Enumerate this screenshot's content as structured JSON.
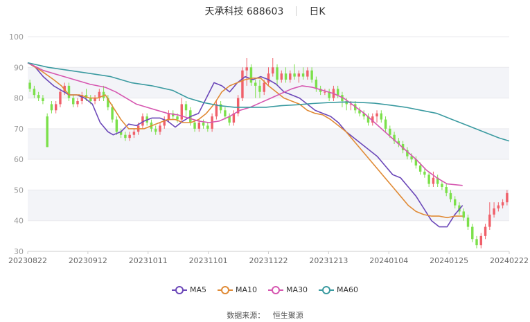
{
  "header": {
    "title": "天承科技 688603",
    "period": "日K"
  },
  "source": {
    "label": "数据来源：",
    "value": "恒生聚源"
  },
  "colors": {
    "up": "#f0606a",
    "down": "#7be04a",
    "grid": "#e9e9ee",
    "band": "#f3f4f8",
    "axis": "#999999"
  },
  "chart_data": {
    "type": "candlestick",
    "ylim": [
      30,
      100
    ],
    "yticks": [
      30,
      40,
      50,
      60,
      70,
      80,
      90,
      100
    ],
    "grid": true,
    "legend_position": "bottom",
    "x_tick_labels": [
      "20230822",
      "20230912",
      "20231011",
      "20231101",
      "20231122",
      "20231213",
      "20240104",
      "20240125",
      "20240222"
    ],
    "candles": [
      [
        85,
        83,
        86,
        82
      ],
      [
        83,
        81,
        84,
        80
      ],
      [
        81,
        80,
        82,
        79
      ],
      [
        80,
        79,
        81,
        78
      ],
      [
        74,
        64,
        75,
        64
      ],
      [
        78,
        76,
        79,
        75
      ],
      [
        76,
        78,
        79,
        75
      ],
      [
        78,
        82,
        83,
        77
      ],
      [
        82,
        84,
        85,
        81
      ],
      [
        84,
        80,
        85,
        79
      ],
      [
        80,
        78,
        81,
        77
      ],
      [
        78,
        79,
        80,
        77
      ],
      [
        79,
        81,
        82,
        78
      ],
      [
        81,
        80,
        83,
        79
      ],
      [
        80,
        79,
        81,
        78
      ],
      [
        79,
        80,
        81,
        78
      ],
      [
        80,
        82,
        83,
        79
      ],
      [
        82,
        80,
        84,
        79
      ],
      [
        80,
        77,
        81,
        76
      ],
      [
        77,
        73,
        78,
        72
      ],
      [
        73,
        69,
        74,
        68
      ],
      [
        69,
        68,
        70,
        67
      ],
      [
        68,
        67,
        69,
        66
      ],
      [
        67,
        68,
        69,
        66
      ],
      [
        68,
        69,
        70,
        67
      ],
      [
        69,
        71,
        72,
        68
      ],
      [
        71,
        74,
        75,
        70
      ],
      [
        74,
        72,
        75,
        71
      ],
      [
        72,
        70,
        73,
        69
      ],
      [
        70,
        69,
        71,
        68
      ],
      [
        69,
        71,
        72,
        68
      ],
      [
        71,
        73,
        74,
        70
      ],
      [
        73,
        75,
        76,
        72
      ],
      [
        75,
        74,
        76,
        73
      ],
      [
        74,
        73,
        75,
        72
      ],
      [
        73,
        78,
        80,
        72
      ],
      [
        78,
        76,
        79,
        74
      ],
      [
        76,
        72,
        77,
        71
      ],
      [
        72,
        70,
        73,
        69
      ],
      [
        70,
        72,
        73,
        69
      ],
      [
        72,
        71,
        73,
        70
      ],
      [
        71,
        70,
        72,
        69
      ],
      [
        70,
        74,
        75,
        69
      ],
      [
        74,
        78,
        79,
        73
      ],
      [
        78,
        76,
        79,
        75
      ],
      [
        76,
        74,
        77,
        73
      ],
      [
        74,
        72,
        75,
        71
      ],
      [
        72,
        75,
        76,
        71
      ],
      [
        75,
        80,
        81,
        74
      ],
      [
        80,
        89,
        90,
        79
      ],
      [
        89,
        90,
        93,
        84
      ],
      [
        90,
        85,
        91,
        84
      ],
      [
        85,
        84,
        86,
        80
      ],
      [
        84,
        82,
        86,
        80
      ],
      [
        82,
        85,
        86,
        81
      ],
      [
        85,
        88,
        90,
        84
      ],
      [
        88,
        90,
        93,
        87
      ],
      [
        90,
        86,
        91,
        84
      ],
      [
        86,
        88,
        89,
        85
      ],
      [
        88,
        86,
        90,
        85
      ],
      [
        86,
        88,
        89,
        85
      ],
      [
        88,
        87,
        91,
        86
      ],
      [
        87,
        88,
        89,
        85
      ],
      [
        88,
        87,
        90,
        86
      ],
      [
        87,
        89,
        90,
        86
      ],
      [
        89,
        86,
        90,
        85
      ],
      [
        86,
        83,
        87,
        82
      ],
      [
        83,
        82,
        84,
        81
      ],
      [
        82,
        82,
        83,
        81
      ],
      [
        82,
        80,
        83,
        79
      ],
      [
        80,
        83,
        84,
        79
      ],
      [
        83,
        81,
        84,
        80
      ],
      [
        81,
        79,
        82,
        77
      ],
      [
        79,
        78,
        80,
        76
      ],
      [
        78,
        78,
        79,
        76
      ],
      [
        78,
        76,
        79,
        75
      ],
      [
        76,
        75,
        77,
        74
      ],
      [
        75,
        74,
        76,
        73
      ],
      [
        74,
        72,
        75,
        71
      ],
      [
        72,
        74,
        75,
        71
      ],
      [
        74,
        75,
        76,
        72
      ],
      [
        75,
        73,
        76,
        72
      ],
      [
        73,
        70,
        74,
        69
      ],
      [
        70,
        68,
        71,
        67
      ],
      [
        68,
        66,
        69,
        65
      ],
      [
        66,
        65,
        67,
        64
      ],
      [
        65,
        63,
        66,
        62
      ],
      [
        63,
        61,
        64,
        60
      ],
      [
        61,
        60,
        62,
        59
      ],
      [
        60,
        58,
        61,
        57
      ],
      [
        58,
        56,
        59,
        55
      ],
      [
        56,
        55,
        57,
        54
      ],
      [
        55,
        52,
        56,
        51
      ],
      [
        52,
        54,
        56,
        51
      ],
      [
        54,
        52,
        55,
        51
      ],
      [
        52,
        51,
        53,
        50
      ],
      [
        51,
        49,
        52,
        48
      ],
      [
        49,
        47,
        50,
        46
      ],
      [
        47,
        45,
        48,
        44
      ],
      [
        45,
        43,
        46,
        42
      ],
      [
        43,
        41,
        44,
        40
      ],
      [
        41,
        38,
        42,
        37
      ],
      [
        38,
        34,
        39,
        33
      ],
      [
        34,
        32,
        35,
        31
      ],
      [
        32,
        35,
        36,
        31
      ],
      [
        35,
        38,
        39,
        34
      ],
      [
        38,
        42,
        46,
        37
      ],
      [
        42,
        44,
        46,
        41
      ],
      [
        44,
        45,
        46,
        43
      ],
      [
        45,
        46,
        47,
        44
      ],
      [
        46,
        49,
        50,
        45
      ]
    ],
    "series": [
      {
        "name": "MA5",
        "color": "#6b47b8",
        "values": [
          [
            0,
            91.5
          ],
          [
            3,
            90
          ],
          [
            6,
            87
          ],
          [
            10,
            84
          ],
          [
            12,
            83
          ],
          [
            14,
            82
          ],
          [
            16,
            81
          ],
          [
            19,
            81
          ],
          [
            22,
            80
          ],
          [
            25,
            78
          ],
          [
            28,
            72
          ],
          [
            31,
            69
          ],
          [
            33,
            68
          ],
          [
            36,
            69
          ],
          [
            39,
            71.5
          ],
          [
            42,
            71
          ],
          [
            45,
            72.5
          ],
          [
            48,
            73.5
          ],
          [
            51,
            73.5
          ],
          [
            54,
            72.5
          ],
          [
            57,
            70.5
          ],
          [
            60,
            72.5
          ],
          [
            63,
            74
          ],
          [
            66,
            75
          ],
          [
            69,
            80
          ],
          [
            72,
            85
          ],
          [
            75,
            84
          ],
          [
            78,
            82
          ],
          [
            81,
            85
          ],
          [
            84,
            87
          ],
          [
            87,
            86
          ],
          [
            90,
            87
          ],
          [
            93,
            86
          ],
          [
            96,
            84.5
          ],
          [
            99,
            82
          ],
          [
            102,
            81
          ],
          [
            105,
            80
          ],
          [
            108,
            78
          ],
          [
            111,
            76
          ],
          [
            114,
            75
          ],
          [
            117,
            74
          ],
          [
            120,
            72
          ],
          [
            123,
            69
          ],
          [
            126,
            67
          ],
          [
            129,
            65
          ],
          [
            132,
            63
          ],
          [
            135,
            61
          ],
          [
            138,
            58
          ],
          [
            141,
            55
          ],
          [
            144,
            54
          ],
          [
            147,
            51
          ],
          [
            150,
            48
          ],
          [
            153,
            44
          ],
          [
            156,
            40
          ],
          [
            159,
            38
          ],
          [
            162,
            38
          ],
          [
            165,
            42
          ],
          [
            168,
            45
          ]
        ]
      },
      {
        "name": "MA10",
        "color": "#e08a35",
        "values": [
          [
            0,
            91.5
          ],
          [
            5,
            89
          ],
          [
            10,
            86
          ],
          [
            13,
            84
          ],
          [
            16,
            81
          ],
          [
            20,
            81
          ],
          [
            24,
            80
          ],
          [
            27,
            80
          ],
          [
            30,
            81
          ],
          [
            33,
            77
          ],
          [
            36,
            73
          ],
          [
            39,
            70
          ],
          [
            42,
            70
          ],
          [
            45,
            70
          ],
          [
            48,
            71
          ],
          [
            51,
            72
          ],
          [
            54,
            73
          ],
          [
            57,
            73
          ],
          [
            60,
            72
          ],
          [
            63,
            72
          ],
          [
            66,
            73
          ],
          [
            69,
            75
          ],
          [
            72,
            78
          ],
          [
            75,
            82
          ],
          [
            78,
            84
          ],
          [
            81,
            85
          ],
          [
            84,
            86
          ],
          [
            87,
            86.5
          ],
          [
            90,
            86.5
          ],
          [
            93,
            84
          ],
          [
            96,
            82
          ],
          [
            99,
            80
          ],
          [
            102,
            79
          ],
          [
            105,
            78
          ],
          [
            108,
            76
          ],
          [
            111,
            75
          ],
          [
            114,
            74.5
          ],
          [
            117,
            73
          ],
          [
            120,
            71
          ],
          [
            123,
            69
          ],
          [
            126,
            66
          ],
          [
            129,
            63
          ],
          [
            132,
            60
          ],
          [
            135,
            57
          ],
          [
            138,
            54
          ],
          [
            141,
            51
          ],
          [
            144,
            48
          ],
          [
            147,
            45
          ],
          [
            150,
            43
          ],
          [
            153,
            42
          ],
          [
            156,
            41.5
          ],
          [
            159,
            41.5
          ],
          [
            162,
            41
          ],
          [
            165,
            41.5
          ],
          [
            168,
            41.5
          ]
        ]
      },
      {
        "name": "MA30",
        "color": "#d656b0",
        "values": [
          [
            0,
            91.5
          ],
          [
            6,
            89
          ],
          [
            12,
            87.5
          ],
          [
            18,
            86
          ],
          [
            24,
            84.5
          ],
          [
            30,
            83.5
          ],
          [
            34,
            82
          ],
          [
            38,
            80
          ],
          [
            42,
            78
          ],
          [
            46,
            77
          ],
          [
            50,
            76
          ],
          [
            54,
            75
          ],
          [
            58,
            74.5
          ],
          [
            62,
            73.5
          ],
          [
            66,
            72.5
          ],
          [
            70,
            72
          ],
          [
            74,
            72.5
          ],
          [
            78,
            74
          ],
          [
            82,
            76
          ],
          [
            86,
            77
          ],
          [
            90,
            78.5
          ],
          [
            94,
            80
          ],
          [
            98,
            81.5
          ],
          [
            102,
            83
          ],
          [
            106,
            84
          ],
          [
            110,
            83.5
          ],
          [
            114,
            82.5
          ],
          [
            118,
            81.5
          ],
          [
            122,
            80
          ],
          [
            126,
            77.5
          ],
          [
            130,
            75
          ],
          [
            134,
            72
          ],
          [
            138,
            69
          ],
          [
            142,
            66
          ],
          [
            146,
            63
          ],
          [
            150,
            60
          ],
          [
            154,
            56.5
          ],
          [
            158,
            54
          ],
          [
            162,
            52
          ],
          [
            168,
            51.5
          ]
        ]
      },
      {
        "name": "MA60",
        "color": "#3a9aa0",
        "values": [
          [
            0,
            91.5
          ],
          [
            8,
            90
          ],
          [
            16,
            89
          ],
          [
            24,
            88
          ],
          [
            32,
            87
          ],
          [
            40,
            85
          ],
          [
            48,
            84
          ],
          [
            56,
            82.5
          ],
          [
            62,
            80
          ],
          [
            68,
            78.5
          ],
          [
            74,
            77.5
          ],
          [
            80,
            77
          ],
          [
            86,
            77
          ],
          [
            92,
            77
          ],
          [
            98,
            77.5
          ],
          [
            104,
            77.8
          ],
          [
            110,
            78.2
          ],
          [
            116,
            78.5
          ],
          [
            122,
            78.7
          ],
          [
            128,
            78.6
          ],
          [
            134,
            78.3
          ],
          [
            140,
            77.7
          ],
          [
            146,
            77
          ],
          [
            152,
            76
          ],
          [
            158,
            75
          ],
          [
            164,
            73
          ],
          [
            170,
            71
          ],
          [
            176,
            69
          ],
          [
            182,
            67
          ],
          [
            186,
            66
          ]
        ]
      }
    ]
  }
}
